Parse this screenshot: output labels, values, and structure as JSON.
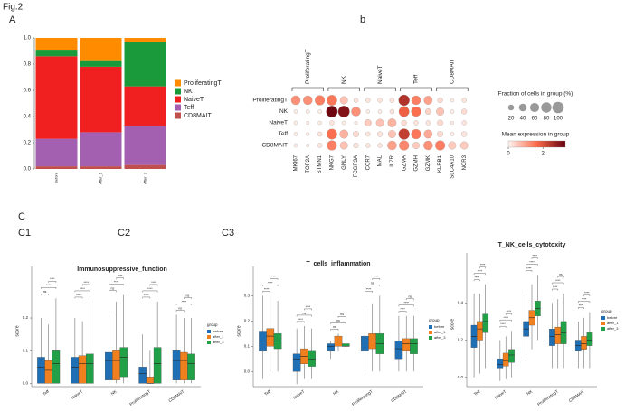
{
  "figure_label": "Fig.2",
  "panel_labels": {
    "a": "A",
    "b": "b",
    "c": "C",
    "c1": "C1",
    "c2": "C2",
    "c3": "C3"
  },
  "chart_data": [
    {
      "type": "stacked-bar",
      "categories": [
        "Before",
        "After_1",
        "After_3"
      ],
      "series": [
        {
          "name": "CD8MAIT",
          "color": "#c0504d",
          "values": [
            0.02,
            0.02,
            0.03
          ]
        },
        {
          "name": "Teff",
          "color": "#a35fb0",
          "values": [
            0.21,
            0.26,
            0.3
          ]
        },
        {
          "name": "NaiveT",
          "color": "#f02020",
          "values": [
            0.63,
            0.5,
            0.3
          ]
        },
        {
          "name": "NK",
          "color": "#1a9a3a",
          "values": [
            0.05,
            0.05,
            0.34
          ]
        },
        {
          "name": "ProliferatingT",
          "color": "#ff8c00",
          "values": [
            0.09,
            0.17,
            0.03
          ]
        }
      ],
      "ylim": [
        0,
        1
      ],
      "yticks": [
        {
          "value": 0,
          "label": "0.0"
        },
        0.2,
        0.4,
        0.6,
        0.8,
        {
          "value": 1,
          "label": "1.0"
        }
      ],
      "legend": "right"
    },
    {
      "type": "dot",
      "genes": [
        "MKI67",
        "TOP2A",
        "STMN1",
        "NKG7",
        "GNLY",
        "FCGR3A",
        "CCR7",
        "MAL",
        "IL7R",
        "GZMA",
        "GZMH",
        "GZMK",
        "KLRB1",
        "SLC4A10",
        "NCR3"
      ],
      "gene_groups": [
        "ProliferatingT",
        "NK",
        "NaiveT",
        "Teff",
        "CD8MAIT"
      ],
      "categories": [
        "ProliferatingT",
        "NK",
        "NaiveT",
        "Teff",
        "CD8MAIT"
      ],
      "fraction": [
        [
          60,
          60,
          70,
          80,
          40,
          10,
          10,
          10,
          10,
          90,
          60,
          50,
          15,
          5,
          10
        ],
        [
          5,
          5,
          5,
          100,
          100,
          60,
          5,
          5,
          10,
          80,
          70,
          20,
          40,
          5,
          15
        ],
        [
          5,
          3,
          5,
          10,
          5,
          3,
          30,
          40,
          50,
          15,
          10,
          10,
          20,
          3,
          10
        ],
        [
          5,
          3,
          10,
          80,
          50,
          20,
          10,
          15,
          40,
          90,
          70,
          50,
          20,
          5,
          15
        ],
        [
          5,
          3,
          10,
          70,
          40,
          15,
          10,
          10,
          60,
          70,
          30,
          60,
          70,
          40,
          40
        ]
      ],
      "expression": [
        [
          1.2,
          1.2,
          1.4,
          1.5,
          0.6,
          0.2,
          0.2,
          0.2,
          0.2,
          2.5,
          1.4,
          1.0,
          0.3,
          0.1,
          0.2
        ],
        [
          0.1,
          0.1,
          0.1,
          3.2,
          3.0,
          1.2,
          0.1,
          0.1,
          0.2,
          1.8,
          1.6,
          0.4,
          0.6,
          0.1,
          0.3
        ],
        [
          0.1,
          0.1,
          0.1,
          0.2,
          0.1,
          0.1,
          0.5,
          0.6,
          0.8,
          0.3,
          0.2,
          0.2,
          0.3,
          0.1,
          0.2
        ],
        [
          0.1,
          0.1,
          0.2,
          1.6,
          0.8,
          0.3,
          0.2,
          0.2,
          0.6,
          2.3,
          1.5,
          0.9,
          0.3,
          0.1,
          0.2
        ],
        [
          0.1,
          0.1,
          0.2,
          1.4,
          0.6,
          0.2,
          0.2,
          0.2,
          1.0,
          1.3,
          0.5,
          1.2,
          1.4,
          0.5,
          0.5
        ]
      ],
      "size_legend": {
        "title": "Fraction of cells in group (%)",
        "ticks": [
          20,
          40,
          60,
          80,
          100
        ]
      },
      "color_legend": {
        "title": "Mean expression in group",
        "clim": [
          0,
          3.3
        ],
        "ticks": [
          0,
          2
        ]
      }
    },
    {
      "type": "box",
      "title": "Immunosuppressive_function",
      "ylabel": "score",
      "legend_title": "group",
      "categories": [
        "Teff",
        "NaiveT",
        "NK",
        "ProliferatingT",
        "CD8MAIT"
      ],
      "series": [
        {
          "name": "before",
          "color": "#1f6fb4",
          "stats": [
            [
              0,
              0,
              0.05,
              0.08,
              0.2
            ],
            [
              0,
              0,
              0.05,
              0.08,
              0.2
            ],
            [
              0,
              0.01,
              0.07,
              0.095,
              0.21
            ],
            [
              0,
              0,
              0.03,
              0.05,
              0.15
            ],
            [
              0,
              0.01,
              0.07,
              0.1,
              0.21
            ]
          ]
        },
        {
          "name": "after_1",
          "color": "#f07f1e",
          "stats": [
            [
              0,
              0,
              0.04,
              0.07,
              0.18
            ],
            [
              0,
              0,
              0.06,
              0.085,
              0.19
            ],
            [
              0,
              0.01,
              0.07,
              0.1,
              0.25
            ],
            [
              0,
              0,
              0,
              0.02,
              0.1
            ],
            [
              0,
              0.01,
              0.07,
              0.095,
              0.2
            ]
          ]
        },
        {
          "name": "after_3",
          "color": "#22a048",
          "stats": [
            [
              0,
              0,
              0.06,
              0.1,
              0.26
            ],
            [
              0,
              0,
              0.06,
              0.09,
              0.25
            ],
            [
              0,
              0.02,
              0.08,
              0.11,
              0.27
            ],
            [
              0,
              0,
              0.06,
              0.11,
              0.25
            ],
            [
              0,
              0.01,
              0.06,
              0.09,
              0.2
            ]
          ]
        }
      ],
      "significance": [
        [
          "ns",
          "****",
          "****"
        ],
        [
          "****",
          "****",
          "****"
        ],
        [
          "ns",
          "****",
          "****"
        ],
        [
          "****",
          "****",
          "****"
        ],
        [
          "ns",
          "****",
          "ns"
        ]
      ],
      "ylim": [
        -0.01,
        0.33
      ],
      "yticks": [
        {
          "value": 0,
          "label": "0.0"
        },
        0.1,
        0.2
      ]
    },
    {
      "type": "box",
      "title": "T_cells_inflammation",
      "ylabel": "score",
      "legend_title": "group",
      "categories": [
        "Teff",
        "NaiveT",
        "NK",
        "ProliferatingT",
        "CD8MAIT"
      ],
      "series": [
        {
          "name": "before",
          "color": "#1f6fb4",
          "stats": [
            [
              -0.03,
              0.08,
              0.12,
              0.16,
              0.3
            ],
            [
              -0.05,
              0,
              0.05,
              0.07,
              0.17
            ],
            [
              0.05,
              0.08,
              0.1,
              0.11,
              0.12
            ],
            [
              0,
              0.08,
              0.12,
              0.14,
              0.26
            ],
            [
              0,
              0.05,
              0.09,
              0.12,
              0.22
            ]
          ]
        },
        {
          "name": "after_1",
          "color": "#f07f1e",
          "stats": [
            [
              0,
              0.1,
              0.14,
              0.17,
              0.3
            ],
            [
              -0.03,
              0.03,
              0.06,
              0.09,
              0.18
            ],
            [
              0.08,
              0.1,
              0.12,
              0.14,
              0.15
            ],
            [
              0,
              0.09,
              0.12,
              0.15,
              0.27
            ],
            [
              0,
              0.08,
              0.11,
              0.13,
              0.22
            ]
          ]
        },
        {
          "name": "after_3",
          "color": "#22a048",
          "stats": [
            [
              0,
              0.09,
              0.12,
              0.15,
              0.28
            ],
            [
              -0.03,
              0.02,
              0.05,
              0.08,
              0.17
            ],
            [
              0.09,
              0.1,
              0.1,
              0.11,
              0.12
            ],
            [
              0,
              0.07,
              0.11,
              0.15,
              0.3
            ],
            [
              0,
              0.07,
              0.11,
              0.13,
              0.22
            ]
          ]
        }
      ],
      "significance": [
        [
          "****",
          "****",
          "****"
        ],
        [
          "****",
          "ns",
          "****"
        ],
        [
          "ns",
          "ns",
          "ns"
        ],
        [
          "****",
          "ns",
          "****"
        ],
        [
          "****",
          "****",
          "ns"
        ]
      ],
      "ylim": [
        -0.06,
        0.38
      ],
      "yticks": [
        {
          "value": 0,
          "label": "0.0"
        },
        0.1,
        0.2,
        0.3
      ]
    },
    {
      "type": "box",
      "title": "T_NK_cells_cytotoxity",
      "ylabel": "score",
      "legend_title": "group",
      "categories": [
        "Teff",
        "NaiveT",
        "NK",
        "ProliferatingT",
        "CD8MAIT"
      ],
      "series": [
        {
          "name": "before",
          "color": "#1f6fb4",
          "stats": [
            [
              0,
              0.16,
              0.22,
              0.28,
              0.45
            ],
            [
              -0.02,
              0.05,
              0.07,
              0.1,
              0.2
            ],
            [
              0.1,
              0.22,
              0.26,
              0.3,
              0.45
            ],
            [
              0.05,
              0.17,
              0.22,
              0.26,
              0.4
            ],
            [
              0.05,
              0.14,
              0.17,
              0.2,
              0.3
            ]
          ]
        },
        {
          "name": "after_1",
          "color": "#f07f1e",
          "stats": [
            [
              0.02,
              0.2,
              0.26,
              0.3,
              0.45
            ],
            [
              -0.01,
              0.06,
              0.09,
              0.13,
              0.22
            ],
            [
              0.15,
              0.28,
              0.32,
              0.36,
              0.5
            ],
            [
              0.05,
              0.18,
              0.23,
              0.27,
              0.42
            ],
            [
              0.05,
              0.15,
              0.18,
              0.22,
              0.32
            ]
          ]
        },
        {
          "name": "after_3",
          "color": "#22a048",
          "stats": [
            [
              0.05,
              0.24,
              0.3,
              0.34,
              0.5
            ],
            [
              0,
              0.08,
              0.12,
              0.15,
              0.25
            ],
            [
              0.2,
              0.33,
              0.37,
              0.41,
              0.55
            ],
            [
              0.05,
              0.18,
              0.24,
              0.3,
              0.45
            ],
            [
              0.05,
              0.17,
              0.2,
              0.24,
              0.35
            ]
          ]
        }
      ],
      "significance": [
        [
          "****",
          "****",
          "****"
        ],
        [
          "****",
          "****",
          "****"
        ],
        [
          "****",
          "****",
          "****"
        ],
        [
          "****",
          "****",
          "ns"
        ],
        [
          "****",
          "****",
          "****"
        ]
      ],
      "ylim": [
        -0.05,
        0.62
      ],
      "yticks": [
        {
          "value": 0,
          "label": "0.0"
        },
        {
          "value": 0.2,
          "label": "0.2"
        },
        {
          "value": 0.4,
          "label": "0.4"
        }
      ]
    }
  ]
}
